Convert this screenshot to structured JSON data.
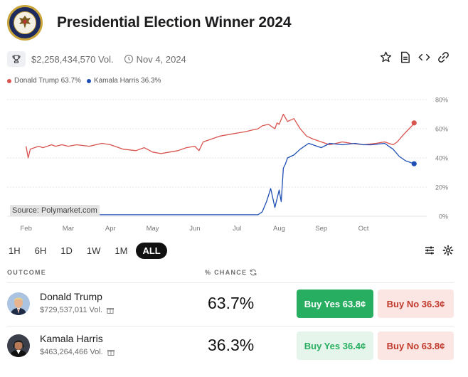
{
  "page": {
    "title": "Presidential Election Winner 2024",
    "volume": "$2,258,434,570 Vol.",
    "end_date": "Nov 4, 2024"
  },
  "legend": [
    {
      "label": "Donald Trump 63.7%",
      "color": "#d9534f"
    },
    {
      "label": "Kamala Harris 36.3%",
      "color": "#1f4fb5"
    }
  ],
  "chart_data": {
    "type": "line",
    "x_ticks": [
      "Feb",
      "Mar",
      "Apr",
      "May",
      "Jun",
      "Jul",
      "Aug",
      "Sep",
      "Oct"
    ],
    "y_ticks": [
      "80%",
      "60%",
      "40%",
      "20%",
      "0%"
    ],
    "ylim": [
      0,
      80
    ],
    "series": [
      {
        "name": "Donald Trump",
        "color": "#d9534f",
        "x": [
          0,
          0.05,
          0.1,
          0.2,
          0.3,
          0.4,
          0.5,
          0.6,
          0.7,
          0.85,
          1.0,
          1.2,
          1.5,
          1.8,
          2.0,
          2.3,
          2.6,
          2.8,
          3.0,
          3.2,
          3.4,
          3.6,
          3.8,
          4.0,
          4.1,
          4.2,
          4.4,
          4.6,
          4.8,
          5.0,
          5.2,
          5.35,
          5.5,
          5.6,
          5.75,
          5.9,
          5.95,
          6.0,
          6.1,
          6.2,
          6.35,
          6.5,
          6.65,
          6.8,
          7.0,
          7.2,
          7.5,
          7.7,
          8.0,
          8.3,
          8.5,
          8.6,
          8.7,
          8.8,
          8.95,
          9.05,
          9.15,
          9.2
        ],
        "values": [
          48,
          40,
          46,
          47,
          48,
          47,
          48,
          49,
          48,
          49,
          48,
          49,
          48,
          50,
          49,
          46,
          45,
          47,
          44,
          43,
          44,
          45,
          47,
          48,
          45,
          51,
          53,
          55,
          56,
          57,
          58,
          59,
          60,
          62,
          63,
          60,
          64,
          63,
          70,
          65,
          67,
          60,
          55,
          53,
          51,
          49,
          51,
          50,
          49,
          50,
          51,
          50,
          49,
          51,
          56,
          59,
          62,
          64
        ]
      },
      {
        "name": "Kamala Harris",
        "color": "#1f4fb5",
        "x": [
          0,
          0.5,
          1.0,
          1.5,
          2.0,
          2.5,
          3.0,
          3.5,
          4.0,
          4.5,
          5.0,
          5.3,
          5.5,
          5.6,
          5.7,
          5.8,
          5.9,
          6.0,
          6.05,
          6.1,
          6.15,
          6.2,
          6.35,
          6.5,
          6.7,
          6.9,
          7.0,
          7.2,
          7.5,
          7.8,
          8.0,
          8.2,
          8.5,
          8.7,
          8.85,
          9.0,
          9.1,
          9.2
        ],
        "values": [
          2,
          1,
          1,
          1,
          1,
          1,
          1,
          1,
          1,
          1,
          1,
          1,
          1,
          3,
          10,
          19,
          6,
          18,
          10,
          33,
          36,
          40,
          42,
          46,
          50,
          48,
          47,
          50,
          49,
          50,
          49,
          49,
          50,
          46,
          41,
          38,
          37,
          36
        ]
      }
    ],
    "source": "Source: Polymarket.com"
  },
  "ranges": [
    "1H",
    "6H",
    "1D",
    "1W",
    "1M",
    "ALL"
  ],
  "active_range": "ALL",
  "table": {
    "col_outcome": "OUTCOME",
    "col_chance": "% CHANCE",
    "rows": [
      {
        "name": "Donald Trump",
        "volume": "$729,537,011 Vol.",
        "chance": "63.7%",
        "buy_yes": "Buy Yes 63.8¢",
        "buy_no": "Buy No 36.3¢"
      },
      {
        "name": "Kamala Harris",
        "volume": "$463,264,466 Vol.",
        "chance": "36.3%",
        "buy_yes": "Buy Yes 36.4¢",
        "buy_no": "Buy No 63.8¢"
      }
    ]
  }
}
